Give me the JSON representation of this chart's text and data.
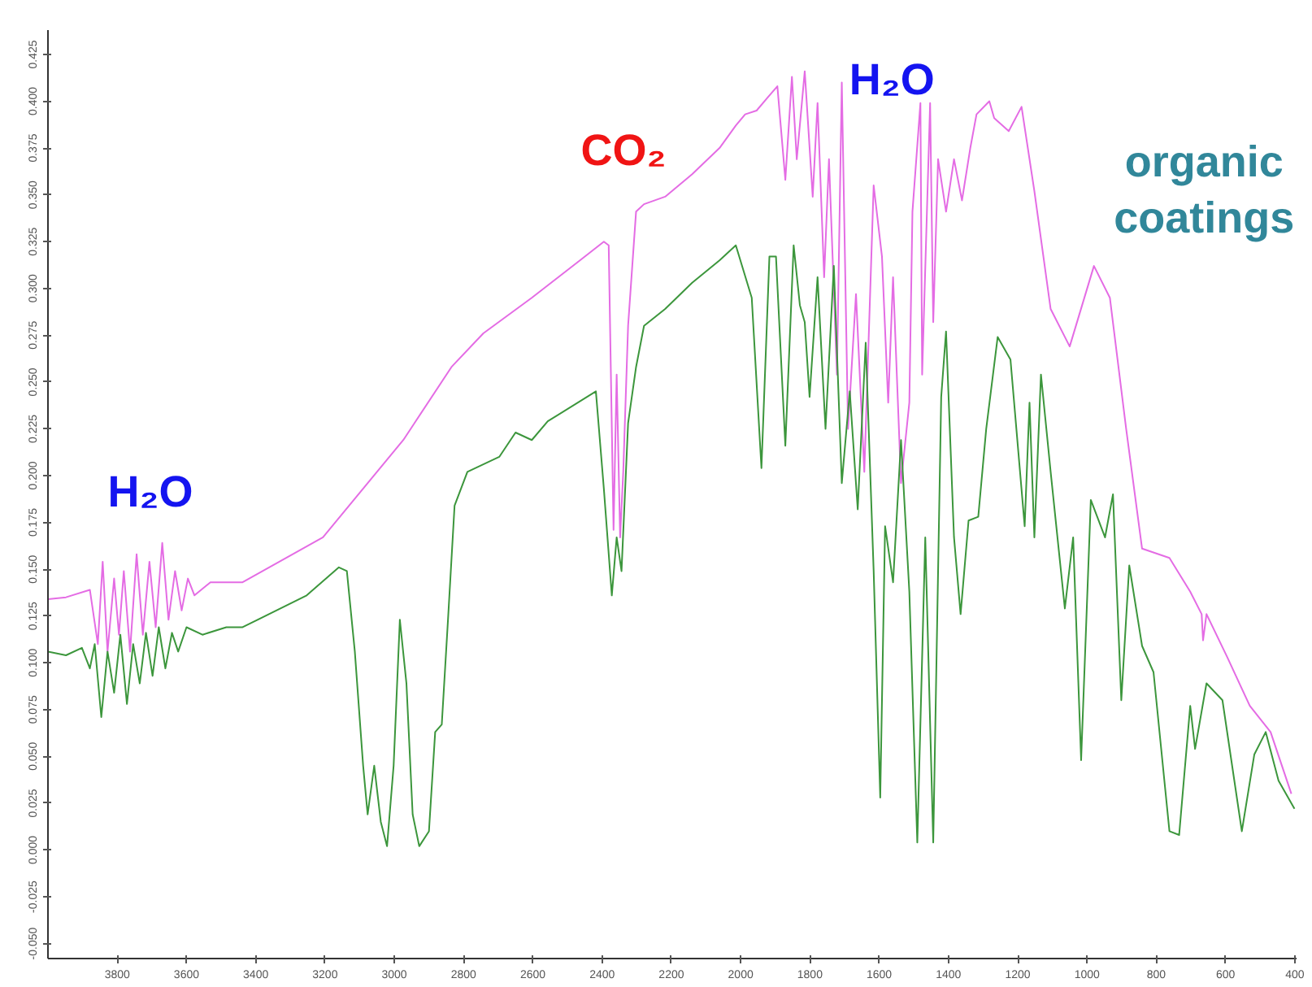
{
  "chart_data": {
    "type": "line",
    "xlim": [
      4000,
      395
    ],
    "ylim": [
      -0.058,
      0.438
    ],
    "xticks": [
      3800,
      3600,
      3400,
      3200,
      3000,
      2800,
      2600,
      2400,
      2200,
      2000,
      1800,
      1600,
      1400,
      1200,
      1000,
      800,
      600,
      400
    ],
    "yticks": [
      0.425,
      {
        "value": 0.4,
        "label": "0.400"
      },
      0.375,
      {
        "value": 0.35,
        "label": "0.350"
      },
      0.325,
      {
        "value": 0.3,
        "label": "0.300"
      },
      0.275,
      {
        "value": 0.25,
        "label": "0.250"
      },
      0.225,
      {
        "value": 0.2,
        "label": "0.200"
      },
      0.175,
      {
        "value": 0.15,
        "label": "0.150"
      },
      0.125,
      {
        "value": 0.1,
        "label": "0.100"
      },
      0.075,
      {
        "value": 0.05,
        "label": "0.050"
      },
      0.025,
      {
        "value": 0,
        "label": "0.000"
      },
      -0.025,
      {
        "value": -0.05,
        "label": "-0.050"
      }
    ],
    "annotations": [
      "H₂O",
      "CO₂",
      "H₂O",
      "organic coatings"
    ],
    "series": [
      {
        "color": "#e46ce4",
        "x": [
          4000,
          3948,
          3879,
          3856,
          3842,
          3828,
          3809,
          3795,
          3781,
          3763,
          3744,
          3726,
          3707,
          3689,
          3670,
          3652,
          3633,
          3614,
          3596,
          3577,
          3531,
          3438,
          3206,
          2974,
          2835,
          2743,
          2603,
          2464,
          2395,
          2381,
          2367,
          2358,
          2348,
          2339,
          2325,
          2302,
          2279,
          2218,
          2140,
          2061,
          2014,
          1987,
          1954,
          1922,
          1894,
          1871,
          1852,
          1838,
          1815,
          1792,
          1778,
          1759,
          1745,
          1722,
          1708,
          1690,
          1667,
          1643,
          1616,
          1592,
          1574,
          1560,
          1537,
          1513,
          1504,
          1481,
          1476,
          1453,
          1444,
          1430,
          1407,
          1384,
          1361,
          1337,
          1319,
          1282,
          1268,
          1226,
          1189,
          1152,
          1105,
          1050,
          980,
          934,
          887,
          841,
          762,
          702,
          669,
          665,
          655,
          595,
          530,
          470,
          410
        ],
        "values": [
          0.134,
          0.135,
          0.139,
          0.11,
          0.154,
          0.106,
          0.145,
          0.115,
          0.149,
          0.106,
          0.158,
          0.115,
          0.154,
          0.119,
          0.164,
          0.123,
          0.149,
          0.128,
          0.145,
          0.136,
          0.143,
          0.143,
          0.167,
          0.219,
          0.258,
          0.276,
          0.295,
          0.315,
          0.325,
          0.323,
          0.171,
          0.254,
          0.167,
          0.202,
          0.28,
          0.341,
          0.345,
          0.349,
          0.361,
          0.375,
          0.387,
          0.393,
          0.395,
          0.402,
          0.408,
          0.358,
          0.413,
          0.369,
          0.416,
          0.349,
          0.399,
          0.306,
          0.369,
          0.254,
          0.41,
          0.225,
          0.297,
          0.202,
          0.355,
          0.317,
          0.239,
          0.306,
          0.196,
          0.239,
          0.341,
          0.399,
          0.254,
          0.399,
          0.282,
          0.369,
          0.341,
          0.369,
          0.347,
          0.375,
          0.393,
          0.4,
          0.391,
          0.384,
          0.397,
          0.352,
          0.289,
          0.269,
          0.312,
          0.295,
          0.225,
          0.161,
          0.156,
          0.138,
          0.126,
          0.112,
          0.126,
          0.103,
          0.077,
          0.063,
          0.03
        ]
      },
      {
        "color": "#3c963c",
        "x": [
          4000,
          3948,
          3902,
          3879,
          3865,
          3846,
          3828,
          3809,
          3791,
          3772,
          3754,
          3735,
          3717,
          3698,
          3680,
          3661,
          3642,
          3624,
          3600,
          3554,
          3485,
          3438,
          3253,
          3160,
          3137,
          3114,
          3090,
          3077,
          3058,
          3039,
          3021,
          3002,
          2984,
          2965,
          2947,
          2928,
          2900,
          2882,
          2863,
          2845,
          2826,
          2789,
          2697,
          2650,
          2603,
          2557,
          2418,
          2395,
          2372,
          2358,
          2344,
          2325,
          2302,
          2279,
          2218,
          2140,
          2061,
          2014,
          1991,
          1968,
          1940,
          1917,
          1898,
          1871,
          1847,
          1829,
          1815,
          1801,
          1778,
          1755,
          1731,
          1708,
          1685,
          1662,
          1639,
          1616,
          1597,
          1583,
          1560,
          1537,
          1513,
          1490,
          1467,
          1444,
          1421,
          1407,
          1384,
          1365,
          1342,
          1314,
          1291,
          1258,
          1221,
          1180,
          1166,
          1152,
          1133,
          1105,
          1064,
          1040,
          1017,
          989,
          948,
          925,
          901,
          878,
          841,
          808,
          762,
          734,
          702,
          688,
          655,
          609,
          553,
          517,
          484,
          447,
          401
        ],
        "values": [
          0.106,
          0.104,
          0.108,
          0.097,
          0.11,
          0.071,
          0.106,
          0.084,
          0.115,
          0.078,
          0.11,
          0.089,
          0.116,
          0.093,
          0.119,
          0.097,
          0.116,
          0.106,
          0.119,
          0.115,
          0.119,
          0.119,
          0.136,
          0.151,
          0.149,
          0.106,
          0.045,
          0.019,
          0.045,
          0.015,
          0.002,
          0.045,
          0.123,
          0.089,
          0.019,
          0.002,
          0.01,
          0.063,
          0.067,
          0.123,
          0.184,
          0.202,
          0.21,
          0.223,
          0.219,
          0.229,
          0.245,
          0.193,
          0.136,
          0.167,
          0.149,
          0.228,
          0.258,
          0.28,
          0.289,
          0.303,
          0.315,
          0.323,
          0.309,
          0.295,
          0.204,
          0.317,
          0.317,
          0.216,
          0.323,
          0.291,
          0.282,
          0.242,
          0.306,
          0.225,
          0.312,
          0.196,
          0.245,
          0.182,
          0.271,
          0.149,
          0.028,
          0.173,
          0.143,
          0.219,
          0.138,
          0.004,
          0.167,
          0.004,
          0.242,
          0.277,
          0.167,
          0.126,
          0.176,
          0.178,
          0.225,
          0.274,
          0.262,
          0.173,
          0.239,
          0.167,
          0.254,
          0.202,
          0.129,
          0.167,
          0.048,
          0.187,
          0.167,
          0.19,
          0.08,
          0.152,
          0.109,
          0.095,
          0.01,
          0.008,
          0.077,
          0.054,
          0.089,
          0.08,
          0.01,
          0.051,
          0.063,
          0.037,
          0.022
        ]
      }
    ]
  }
}
